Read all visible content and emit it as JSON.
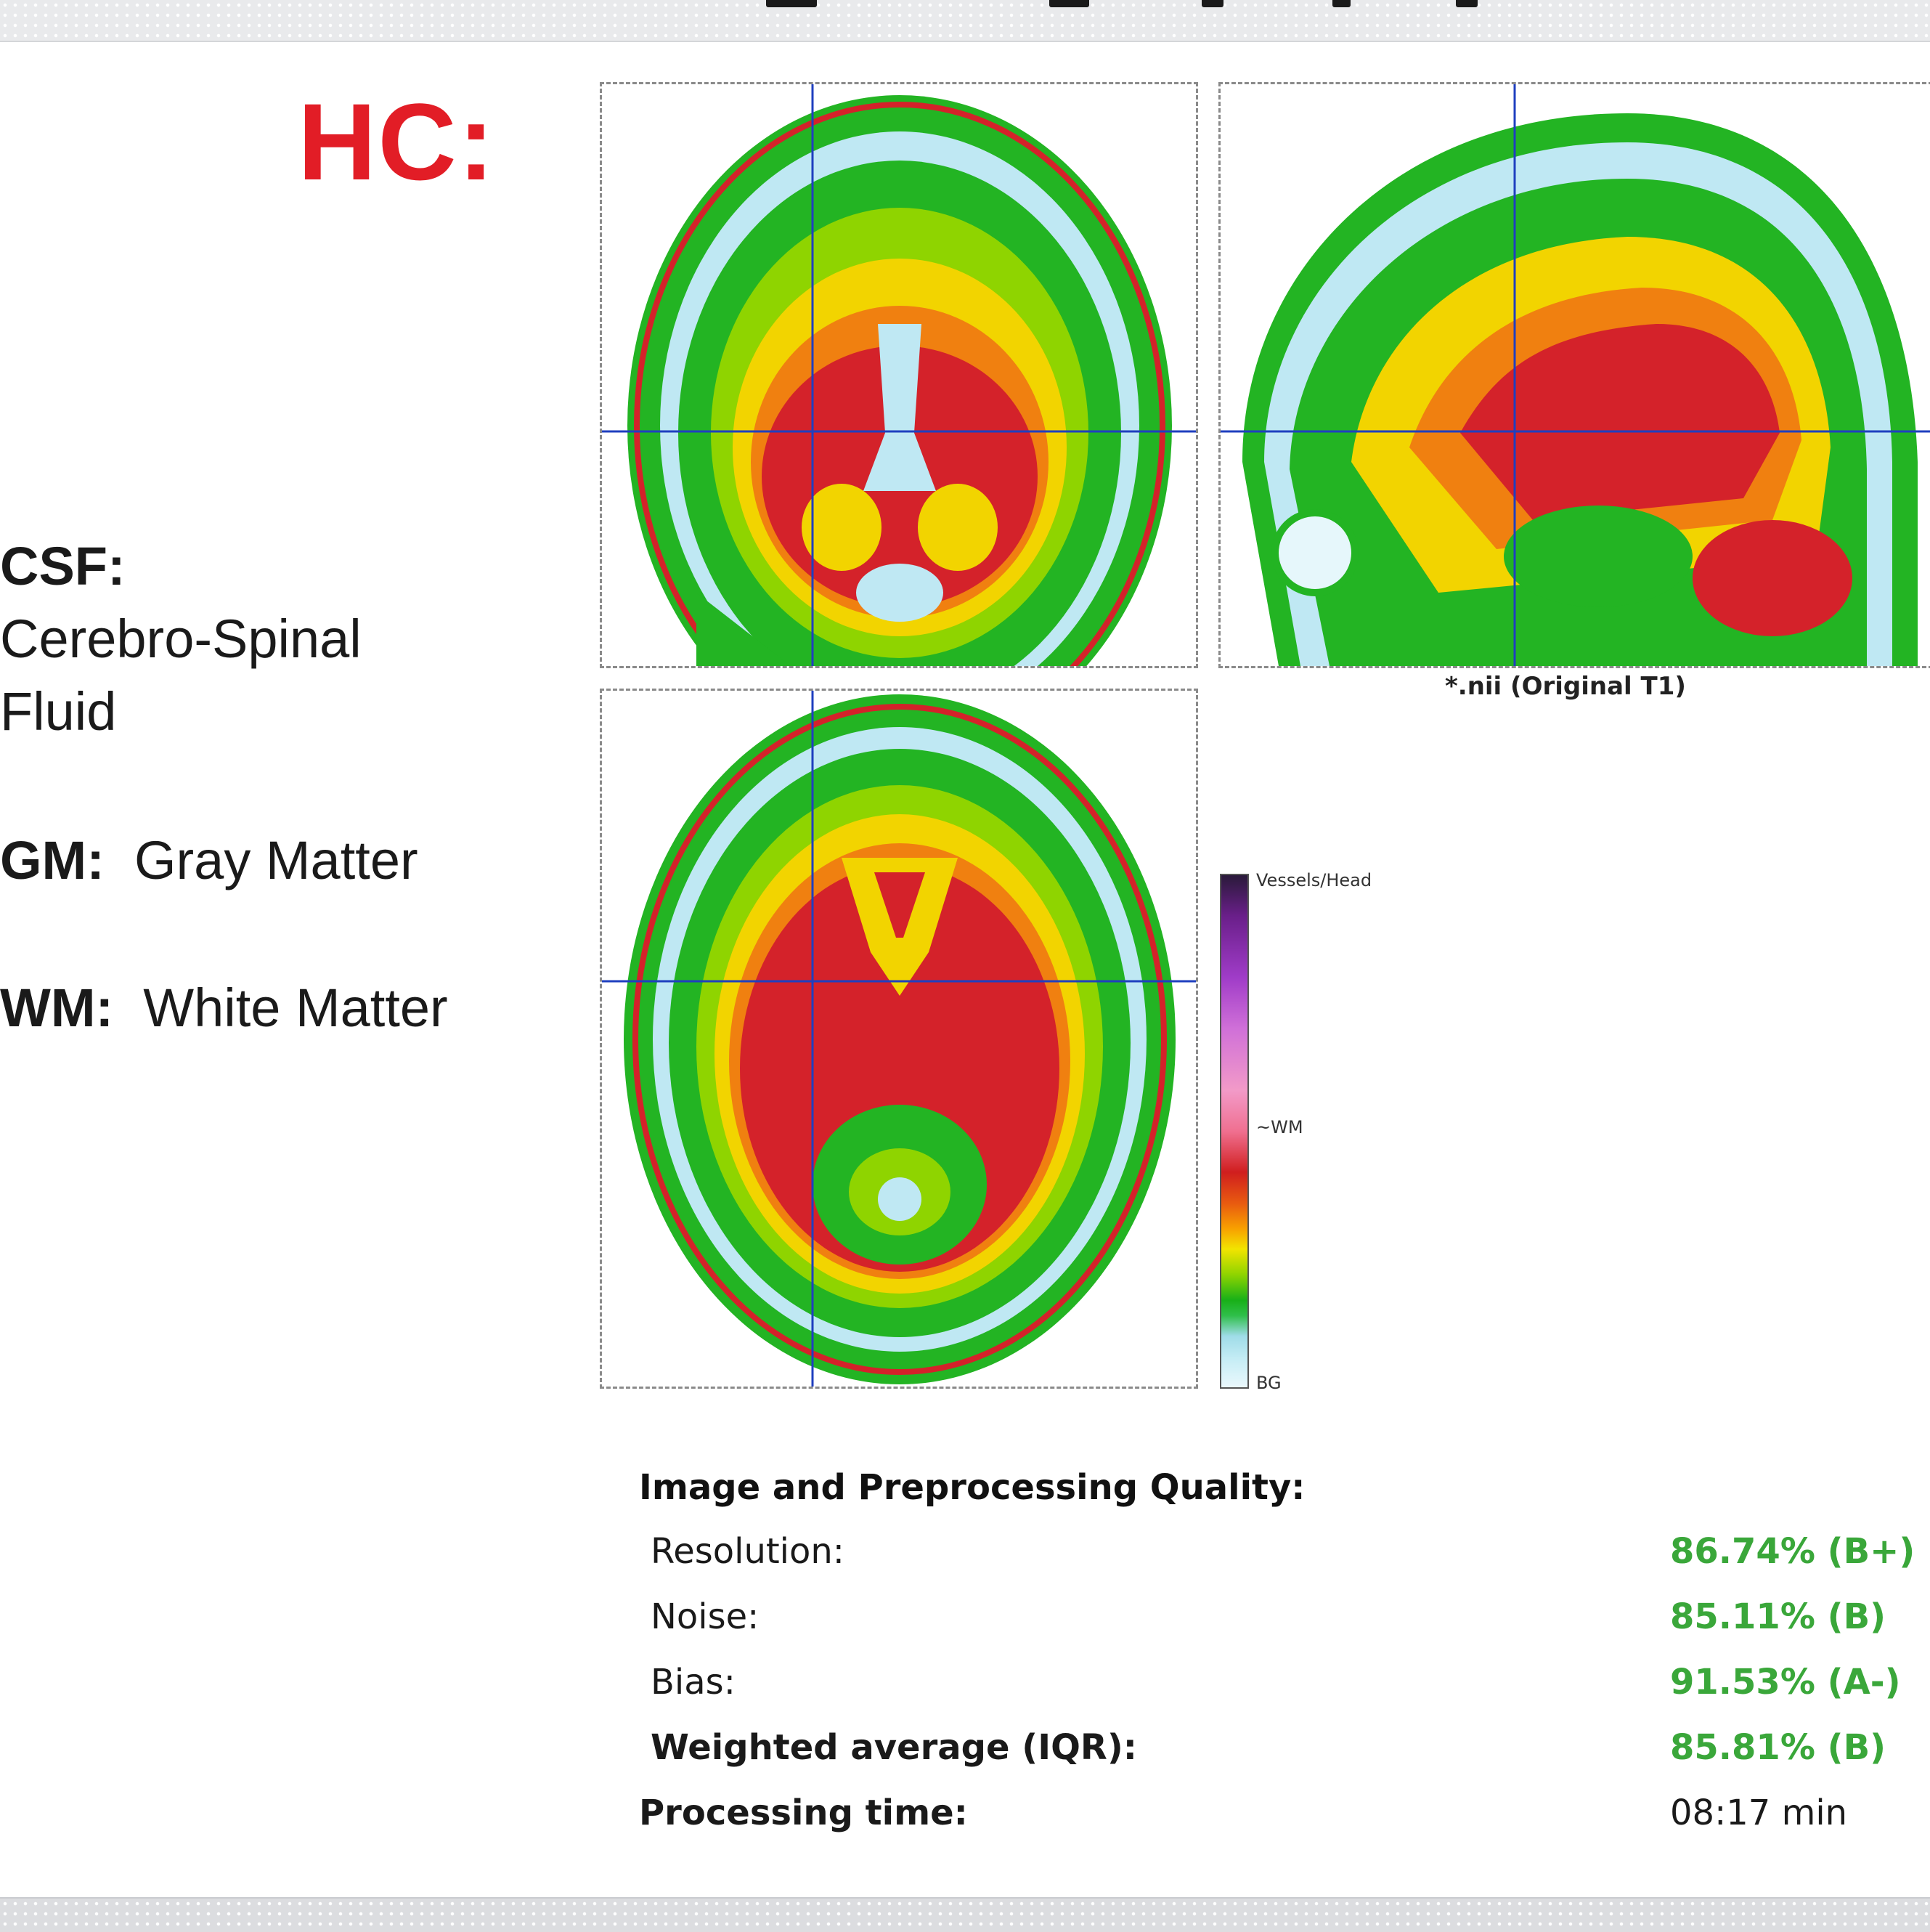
{
  "header": {
    "title": "HC:"
  },
  "legend": {
    "csf_abbr": "CSF:",
    "csf_full_line1": "Cerebro-Spinal",
    "csf_full_line2": "Fluid",
    "gm_abbr": "GM:",
    "gm_full": "Gray Matter",
    "wm_abbr": "WM:",
    "wm_full": "White Matter"
  },
  "figure": {
    "caption": "*.nii (Original T1)",
    "colorbar_labels": {
      "top": "Vessels/Head",
      "mid": "~WM",
      "bottom": "BG"
    },
    "colors": {
      "crosshair": "#1f3fbf",
      "wm": "#d4222a",
      "gm": "#23b423",
      "csf": "#bfe8f3",
      "transition": "#f2d400"
    }
  },
  "quality": {
    "title": "Image and Preprocessing Quality:",
    "rows": [
      {
        "label": "Resolution:",
        "value": "86.74% (B+)"
      },
      {
        "label": "Noise:",
        "value": "85.11% (B)"
      },
      {
        "label": "Bias:",
        "value": "91.53% (A-)"
      },
      {
        "label": "Weighted average (IQR):",
        "value": "85.81% (B)"
      }
    ],
    "processing_label": "Processing time:",
    "processing_value": "08:17 min",
    "value_color": "#3aa73a"
  }
}
